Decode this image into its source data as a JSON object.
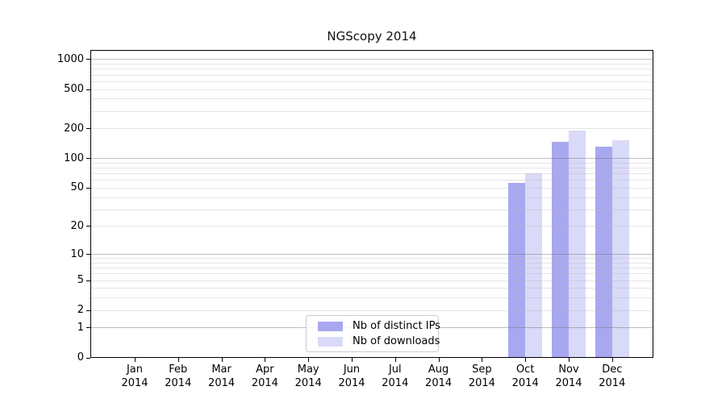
{
  "chart_data": {
    "type": "bar",
    "title": "NGScopy 2014",
    "categories": [
      "Jan",
      "Feb",
      "Mar",
      "Apr",
      "May",
      "Jun",
      "Jul",
      "Aug",
      "Sep",
      "Oct",
      "Nov",
      "Dec"
    ],
    "x_tick_second_line": "2014",
    "series": [
      {
        "name": "Nb of distinct IPs",
        "color": "#a8a8f0",
        "values": [
          0,
          0,
          0,
          0,
          0,
          0,
          0,
          0,
          0,
          55,
          145,
          130
        ]
      },
      {
        "name": "Nb of downloads",
        "color": "#d9d9f8",
        "values": [
          0,
          0,
          0,
          0,
          0,
          0,
          0,
          0,
          0,
          70,
          190,
          150
        ]
      }
    ],
    "yscale": "log1p",
    "ylim": [
      0,
      1250
    ],
    "xlabel": "",
    "ylabel": "",
    "y_ticks": [
      0,
      1,
      2,
      5,
      10,
      20,
      50,
      100,
      200,
      500,
      1000
    ],
    "y_major_gridlines": [
      1,
      10,
      100,
      1000
    ],
    "y_minor_gridlines": [
      2,
      3,
      4,
      5,
      6,
      7,
      8,
      9,
      20,
      30,
      40,
      50,
      60,
      70,
      80,
      90,
      200,
      300,
      400,
      500,
      600,
      700,
      800,
      900
    ],
    "grid": "horizontal",
    "legend_position": "inside-bottom-center",
    "colors": {
      "spine": "#000000",
      "major_grid": "#bcbcbc",
      "minor_grid": "#e4e4e4",
      "background": "#ffffff"
    }
  }
}
